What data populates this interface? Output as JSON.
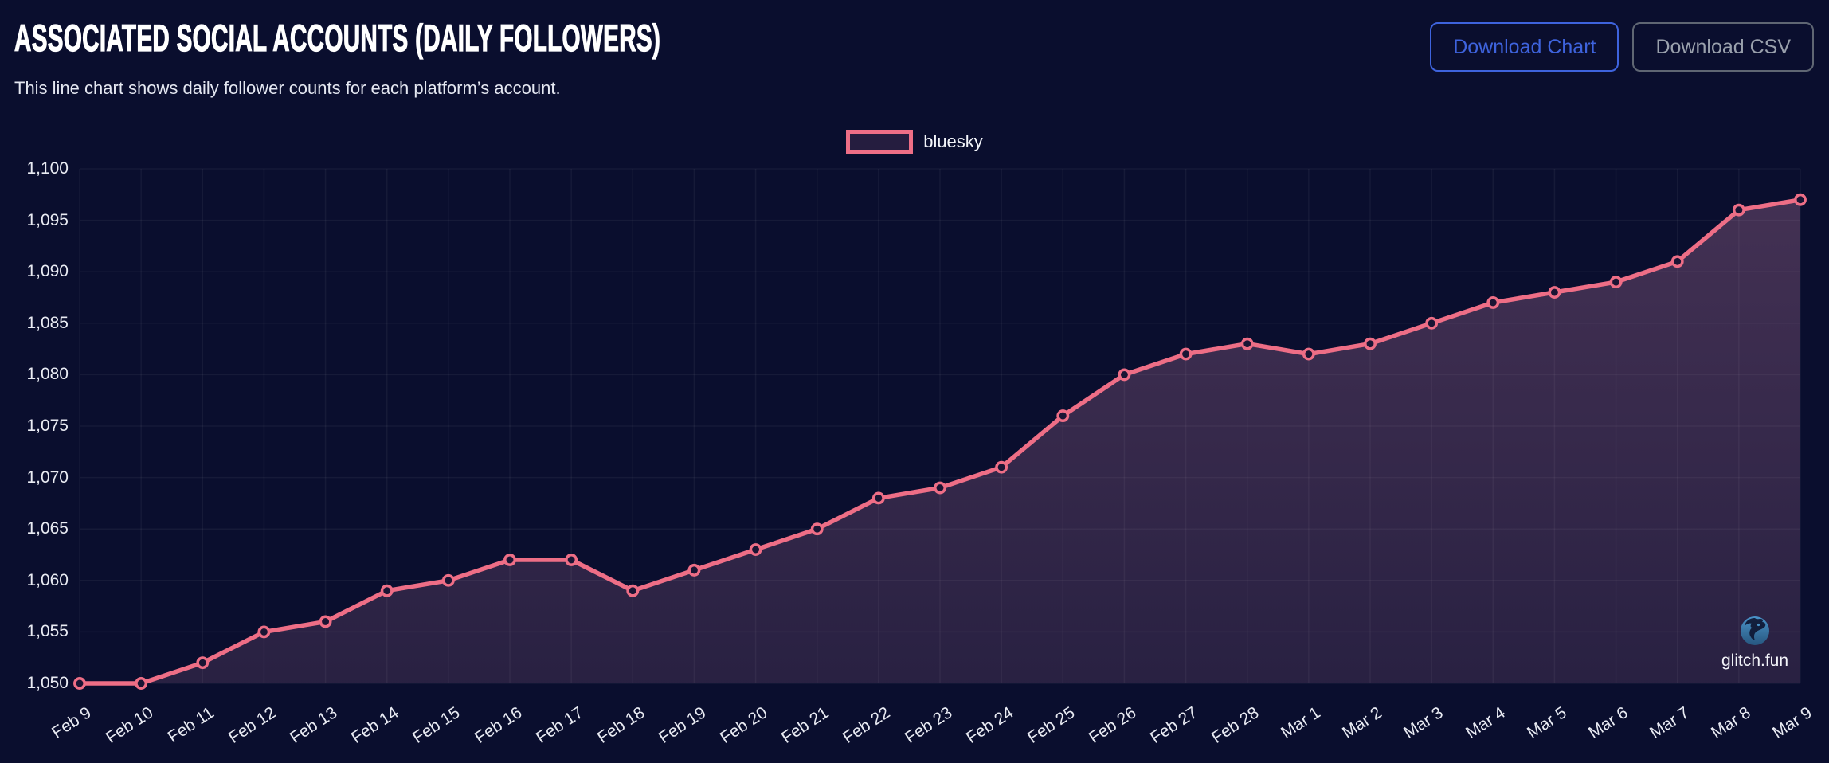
{
  "header": {
    "title": "ASSOCIATED SOCIAL ACCOUNTS (DAILY FOLLOWERS)",
    "subtitle": "This line chart shows daily follower counts for each platform’s account.",
    "buttons": [
      {
        "label": "Download Chart"
      },
      {
        "label": "Download CSV"
      }
    ]
  },
  "legend": {
    "label": "bluesky",
    "position": "top-center"
  },
  "watermark": {
    "text": "glitch.fun"
  },
  "colors": {
    "background": "#0a0e2e",
    "line": "#ee6e86",
    "marker_fill": "#1a1534",
    "area_top": "rgba(200,130,170,0.31)",
    "area_bottom": "rgba(200,130,170,0.16)",
    "grid": "rgba(255,255,255,0.05)",
    "axis_text": "#e9ebf3",
    "button_primary": "#3e63dd",
    "button_secondary": "#99a0ac",
    "logo_blue": "#3d7fb5"
  },
  "chart_data": {
    "type": "line",
    "title": "ASSOCIATED SOCIAL ACCOUNTS (DAILY FOLLOWERS)",
    "x": [
      "Feb 9",
      "Feb 10",
      "Feb 11",
      "Feb 12",
      "Feb 13",
      "Feb 14",
      "Feb 15",
      "Feb 16",
      "Feb 17",
      "Feb 18",
      "Feb 19",
      "Feb 20",
      "Feb 21",
      "Feb 22",
      "Feb 23",
      "Feb 24",
      "Feb 25",
      "Feb 26",
      "Feb 27",
      "Feb 28",
      "Mar 1",
      "Mar 2",
      "Mar 3",
      "Mar 4",
      "Mar 5",
      "Mar 6",
      "Mar 7",
      "Mar 8",
      "Mar 9"
    ],
    "series": [
      {
        "name": "bluesky",
        "values": [
          1050,
          1050,
          1052,
          1055,
          1056,
          1059,
          1060,
          1062,
          1062,
          1059,
          1061,
          1063,
          1065,
          1068,
          1069,
          1071,
          1076,
          1080,
          1082,
          1083,
          1082,
          1083,
          1085,
          1087,
          1088,
          1089,
          1091,
          1096,
          1097
        ]
      }
    ],
    "xlabel": "",
    "ylabel": "",
    "ylim": [
      1050,
      1100
    ],
    "ytick_step": 5,
    "grid": true,
    "legend_position": "top-center"
  }
}
